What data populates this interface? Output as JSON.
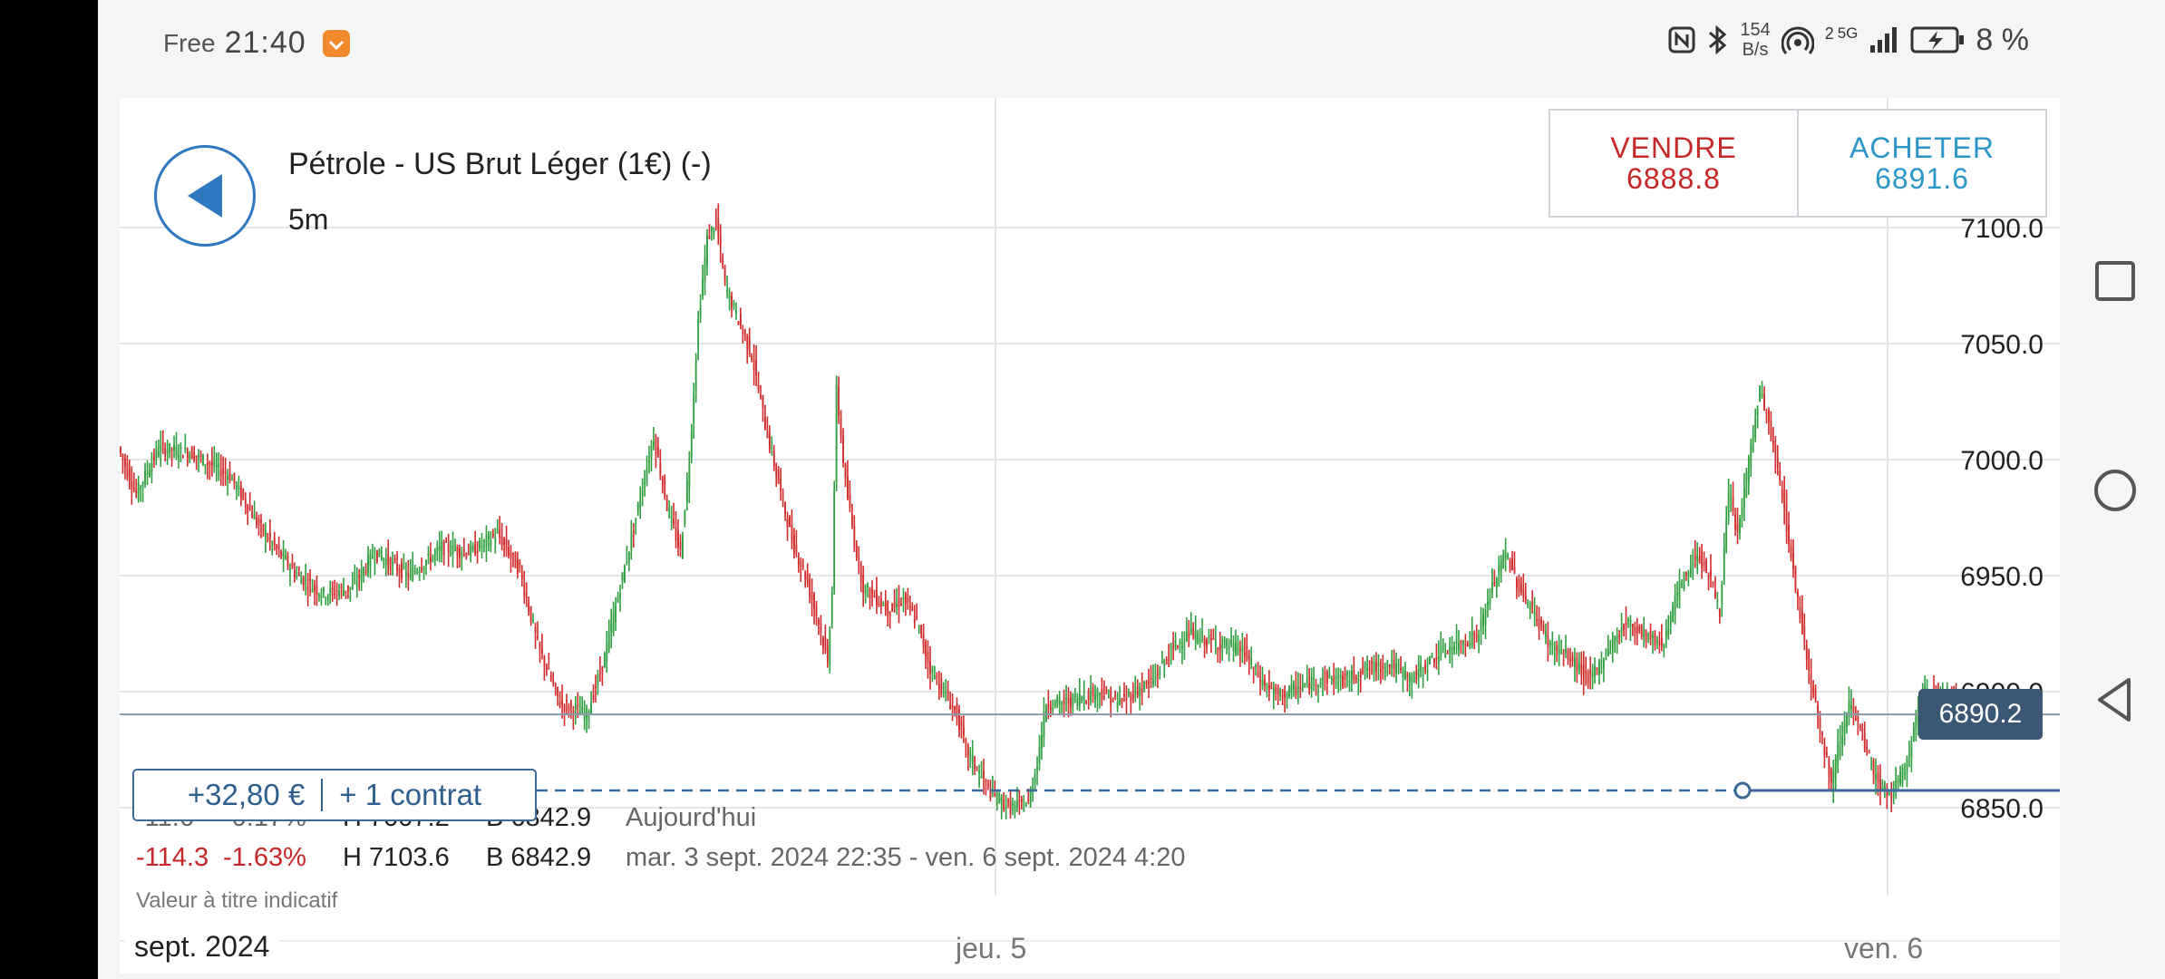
{
  "status_bar": {
    "carrier": "Free",
    "time": "21:40",
    "net_speed_value": "154",
    "net_speed_unit": "B/s",
    "signal_label": "2",
    "network_type": "5G",
    "battery": "8 %",
    "icons": [
      "notification-app-icon",
      "nfc-icon",
      "bluetooth-icon",
      "hotspot-icon",
      "signal-icon",
      "battery-charging-icon"
    ]
  },
  "header": {
    "instrument": "Pétrole - US Brut Léger (1€) (-)",
    "timeframe": "5m"
  },
  "trade": {
    "sell_label": "VENDRE",
    "sell_price": "6888.8",
    "buy_label": "ACHETER",
    "buy_price": "6891.6",
    "sell_color": "#c62828",
    "buy_color": "#2c96c8"
  },
  "current_price": "6890.2",
  "position": {
    "pnl": "+32,80 €",
    "quantity": "+ 1 contrat"
  },
  "stats": {
    "today": {
      "change": "-11.6",
      "change_pct": "-0.17%",
      "high": "H 7007.2",
      "low": "B 6842.9",
      "label": "Aujourd'hui"
    },
    "period": {
      "change": "-114.3",
      "change_pct": "-1.63%",
      "high": "H 7103.6",
      "low": "B 6842.9",
      "label": "mar. 3 sept. 2024 22:35 - ven. 6 sept. 2024 4:20"
    },
    "note": "Valeur à titre indicatif"
  },
  "x_axis": {
    "month_label": "sept. 2024",
    "labels": [
      "jeu. 5",
      "ven. 6"
    ]
  },
  "nav": {
    "icons": [
      "recent-apps-icon",
      "home-icon",
      "back-nav-icon"
    ]
  },
  "chart_data": {
    "type": "candlestick",
    "interval": "5m",
    "y_ticks": [
      "7100.0",
      "7050.0",
      "7000.0",
      "6950.0",
      "6900.0",
      "6850.0"
    ],
    "ylim": [
      6830,
      7110
    ],
    "x_labels": [
      "jeu. 5",
      "ven. 6"
    ],
    "current_price": 6890.2,
    "position_entry_price": 6857.4,
    "up_color": "#2e9e3e",
    "down_color": "#d02a2a",
    "price_path": [
      [
        0,
        7005
      ],
      [
        8,
        6985
      ],
      [
        18,
        7005
      ],
      [
        32,
        7003
      ],
      [
        50,
        6993
      ],
      [
        64,
        6970
      ],
      [
        80,
        6950
      ],
      [
        92,
        6942
      ],
      [
        105,
        6945
      ],
      [
        115,
        6960
      ],
      [
        130,
        6950
      ],
      [
        145,
        6962
      ],
      [
        158,
        6960
      ],
      [
        170,
        6968
      ],
      [
        180,
        6952
      ],
      [
        188,
        6920
      ],
      [
        198,
        6895
      ],
      [
        210,
        6890
      ],
      [
        218,
        6915
      ],
      [
        225,
        6945
      ],
      [
        232,
        6975
      ],
      [
        240,
        7010
      ],
      [
        246,
        6980
      ],
      [
        252,
        6960
      ],
      [
        256,
        7000
      ],
      [
        260,
        7060
      ],
      [
        264,
        7095
      ],
      [
        268,
        7103
      ],
      [
        272,
        7075
      ],
      [
        278,
        7060
      ],
      [
        284,
        7045
      ],
      [
        290,
        7015
      ],
      [
        296,
        6990
      ],
      [
        302,
        6965
      ],
      [
        308,
        6950
      ],
      [
        314,
        6930
      ],
      [
        318,
        6912
      ],
      [
        320,
        6945
      ],
      [
        322,
        7030
      ],
      [
        326,
        6990
      ],
      [
        330,
        6965
      ],
      [
        334,
        6945
      ],
      [
        340,
        6940
      ],
      [
        346,
        6935
      ],
      [
        352,
        6940
      ],
      [
        358,
        6930
      ],
      [
        364,
        6910
      ],
      [
        370,
        6900
      ],
      [
        376,
        6890
      ],
      [
        380,
        6875
      ],
      [
        386,
        6865
      ],
      [
        392,
        6855
      ],
      [
        400,
        6850
      ],
      [
        408,
        6852
      ],
      [
        412,
        6870
      ],
      [
        416,
        6895
      ],
      [
        424,
        6895
      ],
      [
        432,
        6898
      ],
      [
        440,
        6900
      ],
      [
        448,
        6895
      ],
      [
        456,
        6900
      ],
      [
        464,
        6905
      ],
      [
        472,
        6918
      ],
      [
        480,
        6925
      ],
      [
        488,
        6922
      ],
      [
        496,
        6920
      ],
      [
        504,
        6918
      ],
      [
        512,
        6905
      ],
      [
        520,
        6898
      ],
      [
        530,
        6902
      ],
      [
        540,
        6906
      ],
      [
        550,
        6905
      ],
      [
        560,
        6910
      ],
      [
        570,
        6912
      ],
      [
        580,
        6905
      ],
      [
        590,
        6915
      ],
      [
        600,
        6920
      ],
      [
        610,
        6925
      ],
      [
        616,
        6945
      ],
      [
        622,
        6960
      ],
      [
        628,
        6945
      ],
      [
        634,
        6935
      ],
      [
        642,
        6920
      ],
      [
        650,
        6915
      ],
      [
        660,
        6905
      ],
      [
        668,
        6918
      ],
      [
        676,
        6930
      ],
      [
        684,
        6925
      ],
      [
        692,
        6920
      ],
      [
        700,
        6945
      ],
      [
        708,
        6960
      ],
      [
        714,
        6948
      ],
      [
        718,
        6935
      ],
      [
        722,
        6985
      ],
      [
        726,
        6968
      ],
      [
        732,
        7005
      ],
      [
        736,
        7030
      ],
      [
        740,
        7015
      ],
      [
        746,
        6985
      ],
      [
        752,
        6945
      ],
      [
        758,
        6910
      ],
      [
        764,
        6880
      ],
      [
        768,
        6860
      ],
      [
        772,
        6880
      ],
      [
        776,
        6895
      ],
      [
        782,
        6880
      ],
      [
        788,
        6862
      ],
      [
        794,
        6855
      ],
      [
        798,
        6860
      ],
      [
        802,
        6870
      ],
      [
        806,
        6888
      ],
      [
        810,
        6900
      ],
      [
        816,
        6898
      ],
      [
        822,
        6900
      ],
      [
        826,
        6890
      ]
    ]
  }
}
